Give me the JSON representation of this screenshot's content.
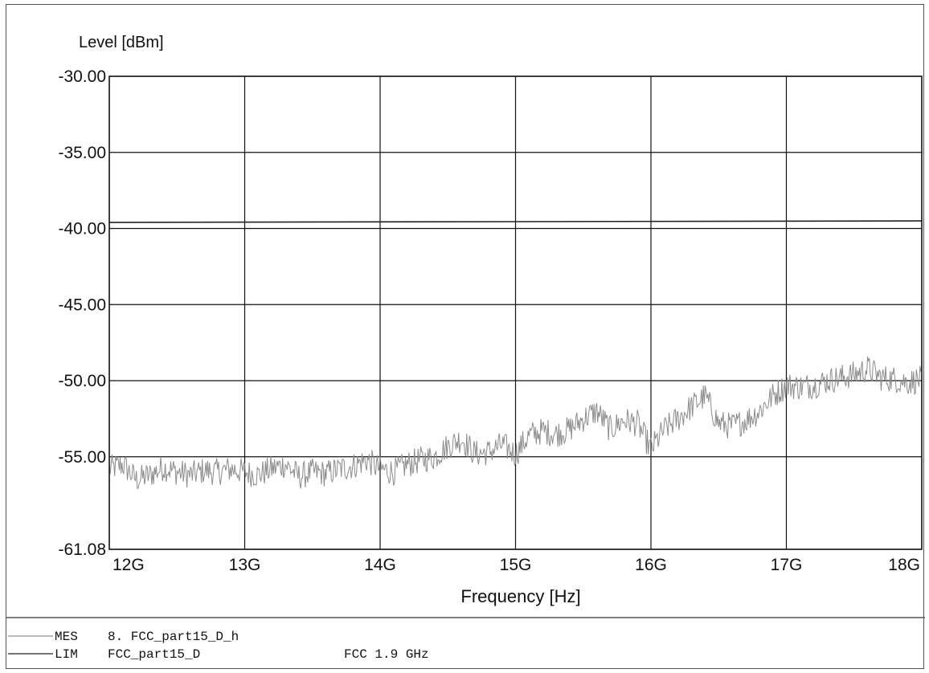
{
  "chart_data": {
    "type": "line",
    "ylabel": "Level [dBm]",
    "xlabel": "Frequency [Hz]",
    "xlim": [
      12,
      18
    ],
    "ylim": [
      -61.08,
      -30.0
    ],
    "y_ticks": [
      -30.0,
      -35.0,
      -40.0,
      -45.0,
      -50.0,
      -55.0,
      -61.08
    ],
    "y_tick_labels": [
      "-30.00",
      "-35.00",
      "-40.00",
      "-45.00",
      "-50.00",
      "-55.00",
      "-61.08"
    ],
    "x_ticks": [
      12,
      13,
      14,
      15,
      16,
      17,
      18
    ],
    "x_tick_labels": [
      "12G",
      "13G",
      "14G",
      "15G",
      "16G",
      "17G",
      "18G"
    ],
    "grid": true,
    "series": [
      {
        "name": "8. FCC_part15_D_h",
        "x": [
          12.0,
          12.1,
          12.2,
          12.3,
          12.4,
          12.5,
          12.6,
          12.7,
          12.8,
          12.9,
          13.0,
          13.1,
          13.2,
          13.3,
          13.4,
          13.5,
          13.6,
          13.7,
          13.8,
          13.9,
          14.0,
          14.1,
          14.2,
          14.3,
          14.4,
          14.5,
          14.6,
          14.7,
          14.8,
          14.9,
          15.0,
          15.1,
          15.2,
          15.3,
          15.4,
          15.5,
          15.6,
          15.7,
          15.8,
          15.9,
          16.0,
          16.1,
          16.2,
          16.3,
          16.4,
          16.5,
          16.6,
          16.7,
          16.8,
          16.9,
          17.0,
          17.1,
          17.2,
          17.3,
          17.4,
          17.5,
          17.6,
          17.7,
          17.8,
          17.9,
          18.0
        ],
        "y": [
          -55.8,
          -55.5,
          -56.5,
          -56.2,
          -55.7,
          -56.0,
          -56.2,
          -55.9,
          -56.0,
          -55.8,
          -56.0,
          -56.2,
          -55.8,
          -55.5,
          -56.3,
          -56.0,
          -56.1,
          -55.8,
          -55.6,
          -55.2,
          -55.8,
          -56.0,
          -55.5,
          -55.2,
          -55.0,
          -54.3,
          -53.8,
          -54.8,
          -54.7,
          -54.2,
          -54.8,
          -53.6,
          -53.3,
          -53.5,
          -53.2,
          -52.5,
          -52.0,
          -53.2,
          -52.6,
          -52.8,
          -54.5,
          -53.2,
          -52.5,
          -51.7,
          -51.0,
          -52.8,
          -53.0,
          -52.6,
          -52.0,
          -51.0,
          -50.3,
          -50.4,
          -50.3,
          -50.0,
          -49.8,
          -49.6,
          -49.2,
          -49.8,
          -49.9,
          -50.1,
          -49.9
        ]
      },
      {
        "name": "FCC_part15_D",
        "x": [
          12,
          18
        ],
        "y": [
          -39.6,
          -39.5
        ]
      }
    ]
  },
  "legend": {
    "rows": [
      {
        "tag": "MES",
        "text": "8. FCC_part15_D_h",
        "extra": ""
      },
      {
        "tag": "LIM",
        "text": "FCC_part15_D",
        "extra": "FCC 1.9 GHz"
      }
    ]
  },
  "colors": {
    "grid": "#111111",
    "trace": "#8c8c8c",
    "limit": "#222222"
  }
}
